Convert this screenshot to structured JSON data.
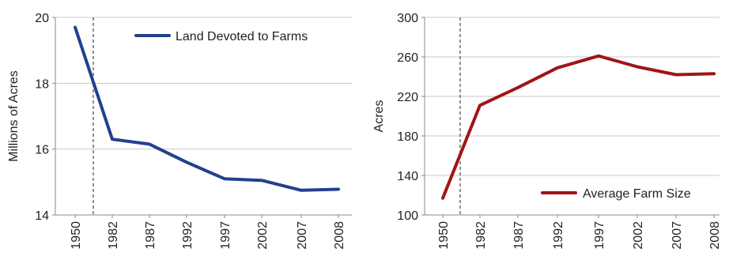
{
  "chart_data": [
    {
      "type": "line",
      "categories": [
        "1950",
        "1982",
        "1987",
        "1992",
        "1997",
        "2002",
        "2007",
        "2008"
      ],
      "series": [
        {
          "name": "Land Devoted to Farms",
          "values": [
            19.7,
            16.3,
            16.15,
            15.6,
            15.1,
            15.05,
            14.75,
            14.78
          ]
        }
      ],
      "xlabel": "",
      "ylabel": "Millions of Acres",
      "ylim": [
        14,
        20
      ],
      "yticks": [
        "14",
        "16",
        "18",
        "20"
      ],
      "grid": true,
      "legend": "top-right",
      "line_color": "#22408f",
      "dashed_divider": true
    },
    {
      "type": "line",
      "categories": [
        "1950",
        "1982",
        "1987",
        "1992",
        "1997",
        "2002",
        "2007",
        "2008"
      ],
      "series": [
        {
          "name": "Average Farm Size",
          "values": [
            117,
            211,
            229,
            249,
            261,
            250,
            242,
            243
          ]
        }
      ],
      "xlabel": "",
      "ylabel": "Acres",
      "ylim": [
        100,
        300
      ],
      "yticks": [
        "100",
        "140",
        "180",
        "220",
        "260",
        "300"
      ],
      "grid": true,
      "legend": "bottom-right",
      "line_color": "#a11515",
      "dashed_divider": true
    }
  ]
}
